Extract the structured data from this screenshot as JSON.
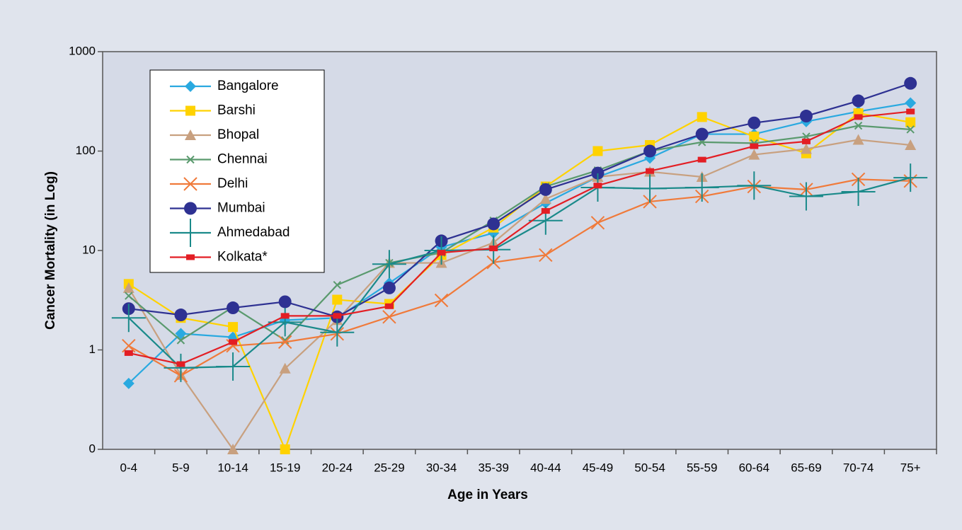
{
  "chart_data": {
    "type": "line",
    "y_label": "Cancer Mortality (in Log)",
    "x_label": "Age in Years",
    "categories": [
      "0-4",
      "5-9",
      "10-14",
      "15-19",
      "20-24",
      "25-29",
      "30-34",
      "35-39",
      "40-44",
      "45-49",
      "50-54",
      "55-59",
      "60-64",
      "65-69",
      "70-74",
      "75+"
    ],
    "log_scale": true,
    "ylim": [
      0.1,
      1000
    ],
    "yticks": [
      {
        "value": 0.1,
        "label": "0"
      },
      1,
      10,
      100,
      1000
    ],
    "legend": "upper left",
    "series": [
      {
        "name": "Bangalore",
        "color": "#29a9e0",
        "marker": "diamond",
        "values": [
          0.46,
          1.46,
          1.34,
          1.99,
          2.1,
          4.7,
          10.8,
          15,
          30,
          55,
          85,
          148,
          148,
          198,
          250,
          305
        ]
      },
      {
        "name": "Barshi",
        "color": "#ffd200",
        "marker": "square",
        "values": [
          4.6,
          2.1,
          1.7,
          0.1,
          3.2,
          2.9,
          9,
          17,
          44,
          100,
          115,
          220,
          140,
          95,
          240,
          195
        ]
      },
      {
        "name": "Bhopal",
        "color": "#c8a07f",
        "marker": "triangle",
        "values": [
          4.2,
          0.56,
          0.1,
          0.65,
          2,
          7.5,
          7.5,
          12,
          33,
          55,
          62,
          55,
          92,
          105,
          130,
          115
        ]
      },
      {
        "name": "Chennai",
        "color": "#5a9a6e",
        "marker": "x",
        "values": [
          3.5,
          1.25,
          2.7,
          1.25,
          4.5,
          7.5,
          9.5,
          20,
          44,
          64,
          100,
          123,
          120,
          140,
          180,
          165
        ]
      },
      {
        "name": "Delhi",
        "color": "#f07a3a",
        "marker": "bigx",
        "values": [
          1.1,
          0.55,
          1.1,
          1.2,
          1.45,
          2.15,
          3.15,
          7.6,
          9,
          19,
          31,
          35,
          44,
          41,
          52,
          50
        ]
      },
      {
        "name": "Mumbai",
        "color": "#2e3192",
        "marker": "circle",
        "values": [
          2.6,
          2.25,
          2.65,
          3.05,
          2.15,
          4.2,
          12.5,
          18.5,
          41,
          60,
          100,
          148,
          192,
          225,
          320,
          480
        ]
      },
      {
        "name": "Ahmedabad",
        "color": "#1a8a8a",
        "marker": "plus",
        "values": [
          2.1,
          0.66,
          0.68,
          1.9,
          1.5,
          7.3,
          10,
          10.2,
          20,
          43,
          42,
          43,
          45,
          35,
          39,
          54
        ]
      },
      {
        "name": "Kolkata*",
        "color": "#e31e24",
        "marker": "dash",
        "values": [
          0.93,
          0.72,
          1.2,
          2.2,
          2.2,
          2.75,
          9.5,
          10.5,
          25,
          45,
          63,
          82,
          112,
          125,
          220,
          250
        ]
      }
    ]
  }
}
